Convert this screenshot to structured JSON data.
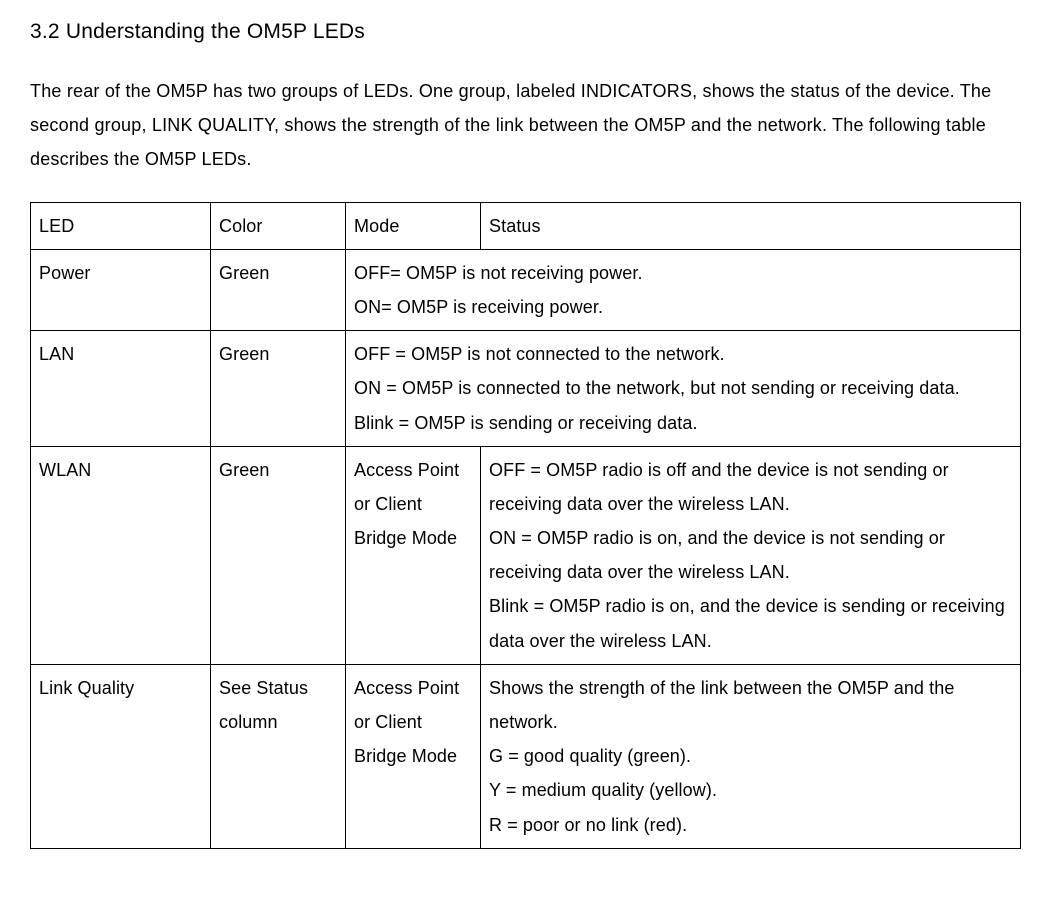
{
  "heading": "3.2 Understanding the OM5P LEDs",
  "intro": "The rear of the OM5P has two groups of LEDs. One group,  labeled  INDICATORS, shows  the status of the device.  The second  group,  LINK QUALITY, shows  the strength of the link between the OM5P and the network. The following  table describes the OM5P LEDs.",
  "table": {
    "header": {
      "led": "LED",
      "color": "Color",
      "mode": "Mode",
      "status": "Status"
    },
    "rows": [
      {
        "led": "Power",
        "color": "Green",
        "mode": "",
        "status_lines": [
          "OFF= OM5P is not receiving power.",
          "ON= OM5P is receiving  power."
        ],
        "mode_merged": true
      },
      {
        "led": "LAN",
        "color": "Green",
        "mode": "",
        "status_lines": [
          "OFF = OM5P is not connected to the network.",
          "ON = OM5P is connected to the network, but not sending or receiving data.",
          "Blink = OM5P is sending or receiving data."
        ],
        "mode_merged": true
      },
      {
        "led": "WLAN",
        "color": "Green",
        "mode": "Access Point or Client Bridge Mode",
        "status_lines": [
          "OFF = OM5P radio  is off and the device is not sending or receiving data over the wireless LAN.",
          "ON = OM5P radio  is on, and the device is not sending or receiving data over the wireless LAN.",
          "Blink = OM5P radio  is on, and the device is sending or receiving data over the wireless LAN."
        ],
        "mode_merged": false
      },
      {
        "led": "Link Quality",
        "color": "See Status column",
        "mode": "Access Point or Client Bridge Mode",
        "status_lines": [
          "Shows  the strength of the link between the OM5P and the network.",
          "G = good quality (green).",
          "Y = medium quality (yellow).",
          "R = poor  or no link (red)."
        ],
        "mode_merged": false
      }
    ]
  },
  "colors": {
    "text": "#000000",
    "background": "#ffffff",
    "border": "#000000"
  },
  "typography": {
    "heading_fontsize": 21,
    "body_fontsize": 18,
    "line_height": 1.9,
    "font_family": "Arial"
  },
  "layout": {
    "col_widths": {
      "led": 180,
      "color": 135,
      "mode": 135
    }
  }
}
